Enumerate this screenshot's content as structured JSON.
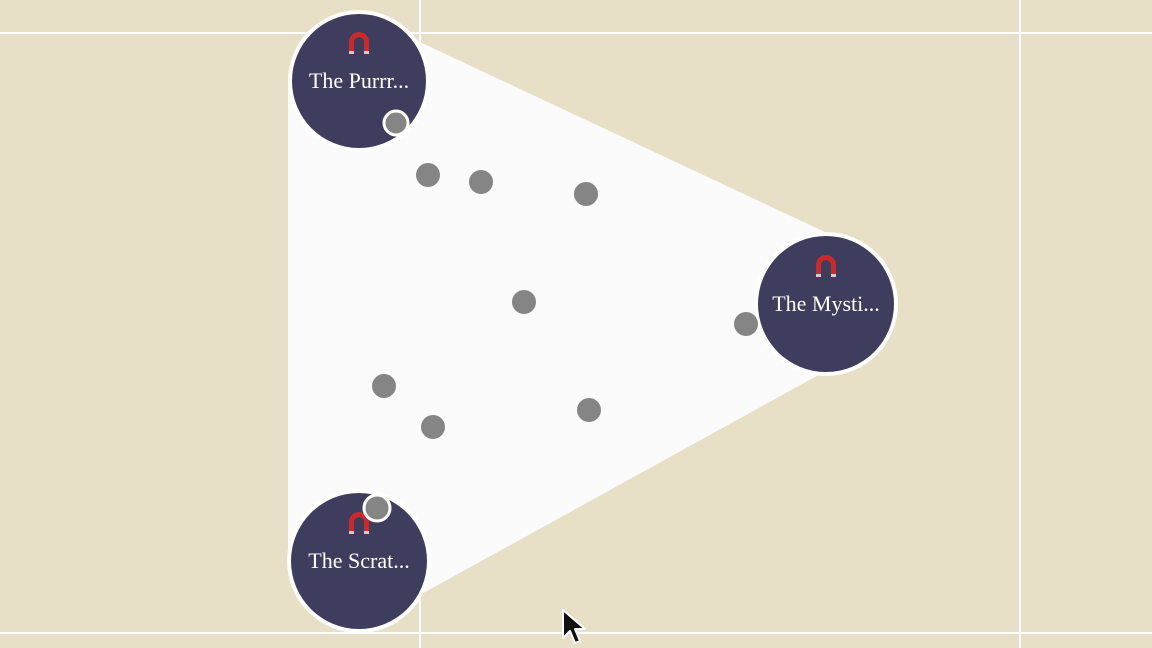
{
  "colors": {
    "background": "#e7dfc6",
    "grid_line": "#ffffff",
    "region_fill": "#fbfbfb",
    "magnet_fill": "#3f3d5e",
    "magnet_stroke": "#ffffff",
    "point_fill": "#858585",
    "magnet_icon": "#cc2a2a"
  },
  "magnets": [
    {
      "label": "The Purrr...",
      "icon": "magnet-icon"
    },
    {
      "label": "The Mysti...",
      "icon": "magnet-icon"
    },
    {
      "label": "The Scrat...",
      "icon": "magnet-icon"
    }
  ],
  "points": [
    {
      "highlighted": true
    },
    {
      "highlighted": false
    },
    {
      "highlighted": false
    },
    {
      "highlighted": false
    },
    {
      "highlighted": false
    },
    {
      "highlighted": false
    },
    {
      "highlighted": false
    },
    {
      "highlighted": false
    },
    {
      "highlighted": false
    },
    {
      "highlighted": true
    }
  ],
  "cursor": {
    "icon": "pointer-cursor-icon"
  }
}
